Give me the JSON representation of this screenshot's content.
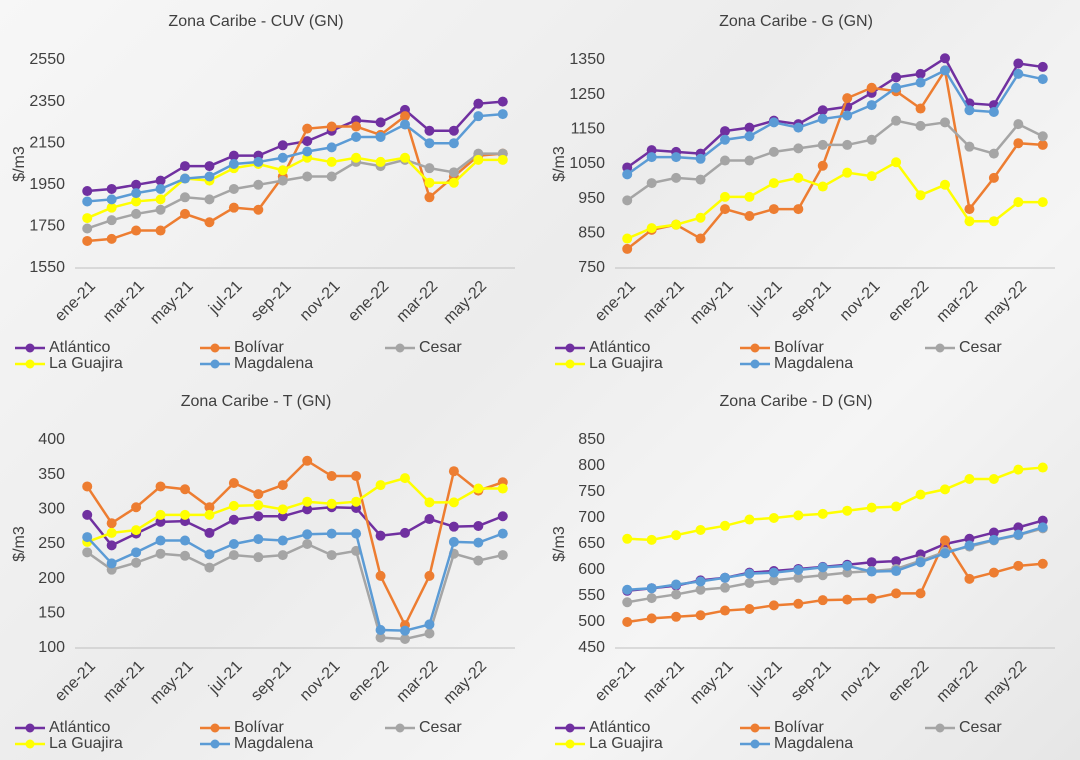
{
  "chart_data": [
    {
      "type": "line",
      "title": "Zona Caribe - CUV (GN)",
      "y_label": "$/m3",
      "categories": [
        "ene-21",
        null,
        "mar-21",
        null,
        "may-21",
        null,
        "jul-21",
        null,
        "sep-21",
        null,
        "nov-21",
        null,
        "ene-22",
        null,
        "mar-22",
        null,
        "may-22",
        null
      ],
      "ylim": [
        1550,
        2550
      ],
      "yticks": [
        1550,
        1750,
        1950,
        2150,
        2350,
        2550
      ],
      "grid": false,
      "legend": "bottom",
      "series": [
        {
          "name": "Atlántico",
          "color": "#7030a0",
          "values": [
            1920,
            1930,
            1950,
            1970,
            2040,
            2040,
            2090,
            2090,
            2140,
            2160,
            2210,
            2260,
            2250,
            2310,
            2210,
            2210,
            2340,
            2350
          ]
        },
        {
          "name": "Bolívar",
          "color": "#ed7d31",
          "values": [
            1680,
            1690,
            1730,
            1730,
            1810,
            1770,
            1840,
            1830,
            1990,
            2220,
            2230,
            2230,
            2190,
            2280,
            1890,
            1990,
            2090,
            2100
          ]
        },
        {
          "name": "Cesar",
          "color": "#a5a5a5",
          "values": [
            1740,
            1780,
            1810,
            1830,
            1890,
            1880,
            1930,
            1950,
            1970,
            1990,
            1990,
            2060,
            2040,
            2070,
            2030,
            2010,
            2100,
            2100
          ]
        },
        {
          "name": "La Guajira",
          "color": "#ffff00",
          "values": [
            1790,
            1840,
            1870,
            1880,
            1980,
            1970,
            2030,
            2050,
            2020,
            2080,
            2060,
            2080,
            2060,
            2080,
            1960,
            1960,
            2070,
            2070
          ]
        },
        {
          "name": "Magdalena",
          "color": "#5b9bd5",
          "values": [
            1870,
            1880,
            1910,
            1930,
            1980,
            1990,
            2050,
            2060,
            2080,
            2110,
            2130,
            2180,
            2180,
            2240,
            2150,
            2150,
            2280,
            2290
          ]
        }
      ]
    },
    {
      "type": "line",
      "title": "Zona Caribe - G (GN)",
      "y_label": "$/m3",
      "categories": [
        "ene-21",
        null,
        "mar-21",
        null,
        "may-21",
        null,
        "jul-21",
        null,
        "sep-21",
        null,
        "nov-21",
        null,
        "ene-22",
        null,
        "mar-22",
        null,
        "may-22",
        null
      ],
      "ylim": [
        750,
        1350
      ],
      "yticks": [
        750,
        850,
        950,
        1050,
        1150,
        1250,
        1350
      ],
      "grid": false,
      "legend": "bottom",
      "series": [
        {
          "name": "Atlántico",
          "color": "#7030a0",
          "values": [
            1040,
            1090,
            1085,
            1080,
            1145,
            1155,
            1175,
            1165,
            1205,
            1215,
            1255,
            1300,
            1310,
            1355,
            1225,
            1220,
            1340,
            1330
          ]
        },
        {
          "name": "Bolívar",
          "color": "#ed7d31",
          "values": [
            805,
            860,
            875,
            835,
            920,
            900,
            920,
            920,
            1045,
            1240,
            1270,
            1260,
            1210,
            1320,
            920,
            1010,
            1110,
            1105
          ]
        },
        {
          "name": "Cesar",
          "color": "#a5a5a5",
          "values": [
            945,
            995,
            1010,
            1005,
            1060,
            1060,
            1085,
            1095,
            1105,
            1105,
            1120,
            1175,
            1160,
            1170,
            1100,
            1080,
            1165,
            1130
          ]
        },
        {
          "name": "La Guajira",
          "color": "#ffff00",
          "values": [
            835,
            865,
            875,
            895,
            955,
            955,
            995,
            1010,
            985,
            1025,
            1015,
            1055,
            960,
            990,
            885,
            885,
            940,
            940
          ]
        },
        {
          "name": "Magdalena",
          "color": "#5b9bd5",
          "values": [
            1020,
            1070,
            1070,
            1065,
            1120,
            1130,
            1170,
            1155,
            1180,
            1190,
            1220,
            1270,
            1285,
            1320,
            1205,
            1200,
            1310,
            1295
          ]
        }
      ]
    },
    {
      "type": "line",
      "title": "Zona Caribe - T (GN)",
      "y_label": "$/m3",
      "categories": [
        "ene-21",
        null,
        "mar-21",
        null,
        "may-21",
        null,
        "jul-21",
        null,
        "sep-21",
        null,
        "nov-21",
        null,
        "ene-22",
        null,
        "mar-22",
        null,
        "may-22",
        null
      ],
      "ylim": [
        100,
        400
      ],
      "yticks": [
        100,
        150,
        200,
        250,
        300,
        350,
        400
      ],
      "grid": false,
      "legend": "bottom",
      "series": [
        {
          "name": "Atlántico",
          "color": "#7030a0",
          "values": [
            292,
            248,
            265,
            282,
            283,
            266,
            285,
            290,
            290,
            300,
            303,
            302,
            262,
            266,
            286,
            275,
            276,
            290
          ]
        },
        {
          "name": "Bolívar",
          "color": "#ed7d31",
          "values": [
            333,
            280,
            303,
            333,
            329,
            303,
            338,
            322,
            335,
            370,
            348,
            348,
            204,
            133,
            204,
            355,
            327,
            339
          ]
        },
        {
          "name": "Cesar",
          "color": "#a5a5a5",
          "values": [
            238,
            213,
            223,
            236,
            233,
            216,
            234,
            231,
            234,
            250,
            234,
            240,
            115,
            113,
            121,
            236,
            226,
            234
          ]
        },
        {
          "name": "La Guajira",
          "color": "#ffff00",
          "values": [
            253,
            266,
            270,
            292,
            292,
            292,
            305,
            306,
            300,
            311,
            308,
            311,
            335,
            345,
            310,
            310,
            330,
            330
          ]
        },
        {
          "name": "Magdalena",
          "color": "#5b9bd5",
          "values": [
            260,
            222,
            238,
            255,
            255,
            235,
            250,
            257,
            255,
            264,
            265,
            265,
            126,
            125,
            134,
            253,
            252,
            265
          ]
        }
      ]
    },
    {
      "type": "line",
      "title": "Zona Caribe - D (GN)",
      "y_label": "$/m3",
      "categories": [
        "ene-21",
        null,
        "mar-21",
        null,
        "may-21",
        null,
        "jul-21",
        null,
        "sep-21",
        null,
        "nov-21",
        null,
        "ene-22",
        null,
        "mar-22",
        null,
        "may-22",
        null
      ],
      "ylim": [
        450,
        850
      ],
      "yticks": [
        450,
        500,
        550,
        600,
        650,
        700,
        750,
        800,
        850
      ],
      "grid": false,
      "legend": "bottom",
      "series": [
        {
          "name": "Atlántico",
          "color": "#7030a0",
          "values": [
            560,
            565,
            570,
            580,
            585,
            595,
            598,
            602,
            606,
            610,
            615,
            617,
            630,
            650,
            660,
            672,
            682,
            695
          ]
        },
        {
          "name": "Bolívar",
          "color": "#ed7d31",
          "values": [
            500,
            507,
            510,
            513,
            522,
            525,
            532,
            535,
            542,
            543,
            545,
            555,
            555,
            657,
            583,
            595,
            608,
            612
          ]
        },
        {
          "name": "Cesar",
          "color": "#a5a5a5",
          "values": [
            538,
            546,
            553,
            562,
            566,
            575,
            580,
            585,
            590,
            595,
            598,
            602,
            618,
            635,
            645,
            657,
            667,
            680
          ]
        },
        {
          "name": "La Guajira",
          "color": "#ffff00",
          "values": [
            660,
            658,
            667,
            677,
            685,
            697,
            700,
            705,
            708,
            714,
            720,
            722,
            745,
            755,
            775,
            775,
            793,
            797
          ]
        },
        {
          "name": "Magdalena",
          "color": "#5b9bd5",
          "values": [
            562,
            565,
            572,
            578,
            585,
            593,
            595,
            600,
            605,
            608,
            597,
            598,
            615,
            632,
            647,
            658,
            668,
            682
          ]
        }
      ]
    }
  ]
}
